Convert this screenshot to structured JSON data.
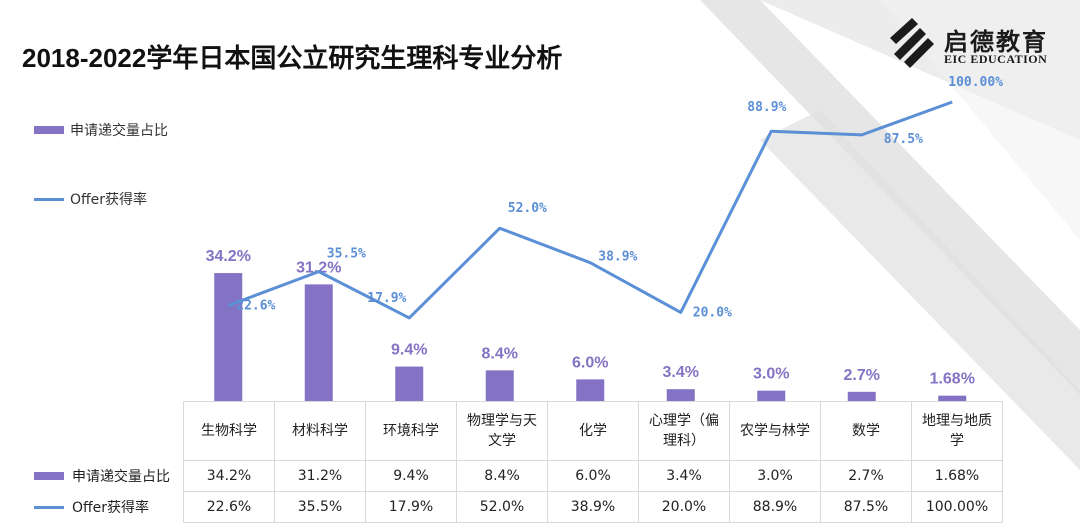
{
  "title": "2018-2022学年日本国公立研究生理科专业分析",
  "logo": {
    "name_cn": "启德教育",
    "name_en": "EIC EDUCATION",
    "icon": "eic-logo-mark"
  },
  "colors": {
    "bar": "#8473c4",
    "line": "#5b8fd6",
    "bar_label": "#8473c4",
    "line_label": "#5b8fd6",
    "deco": "#e4e4e4"
  },
  "chart_data": {
    "type": "bar",
    "title": "2018-2022学年日本国公立研究生理科专业分析",
    "categories": [
      "生物科学",
      "材料科学",
      "环境科学",
      "物理学与天文学",
      "化学",
      "心理学（偏理科）",
      "农学与林学",
      "数学",
      "地理与地质学"
    ],
    "series": [
      {
        "name": "申请递交量占比",
        "type": "bar",
        "values": [
          34.2,
          31.2,
          9.4,
          8.4,
          6.0,
          3.4,
          3.0,
          2.7,
          1.68
        ],
        "labels": [
          "34.2%",
          "31.2%",
          "9.4%",
          "8.4%",
          "6.0%",
          "3.4%",
          "3.0%",
          "2.7%",
          "1.68%"
        ]
      },
      {
        "name": "Offer获得率",
        "type": "line",
        "values": [
          22.6,
          35.5,
          17.9,
          52.0,
          38.9,
          20.0,
          88.9,
          87.5,
          100.0
        ],
        "labels": [
          "22.6%",
          "35.5%",
          "17.9%",
          "52.0%",
          "38.9%",
          "20.0%",
          "88.9%",
          "87.5%",
          "100.00%"
        ]
      }
    ],
    "legend_position": "left",
    "grid": false
  },
  "table": {
    "cat_lines": [
      [
        "生物科学"
      ],
      [
        "材料科学"
      ],
      [
        "环境科学"
      ],
      [
        "物理学与天",
        "文学"
      ],
      [
        "化学"
      ],
      [
        "心理学（偏",
        "理科）"
      ],
      [
        "农学与林学"
      ],
      [
        "数学"
      ],
      [
        "地理与地质",
        "学"
      ]
    ],
    "row1_label": "申请递交量占比",
    "row1": [
      "34.2%",
      "31.2%",
      "9.4%",
      "8.4%",
      "6.0%",
      "3.4%",
      "3.0%",
      "2.7%",
      "1.68%"
    ],
    "row2_label": "Offer获得率",
    "row2": [
      "22.6%",
      "35.5%",
      "17.9%",
      "52.0%",
      "38.9%",
      "20.0%",
      "88.9%",
      "87.5%",
      "100.00%"
    ]
  }
}
